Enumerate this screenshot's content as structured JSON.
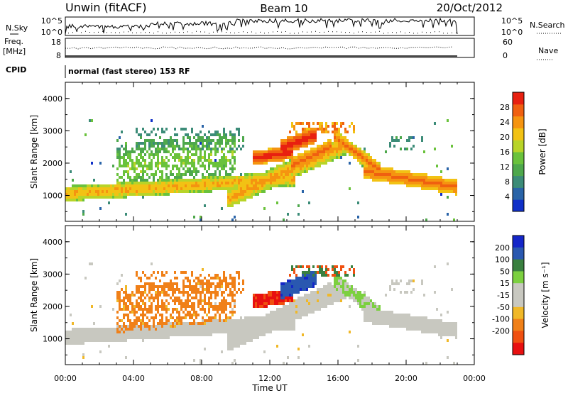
{
  "header": {
    "station": "Unwin (fitACF)",
    "beam": "Beam 10",
    "date": "20/Oct/2012"
  },
  "params": {
    "nsky_label": "N.Sky",
    "nsky_ticks": [
      "10^5",
      "10^0"
    ],
    "nsearch_label": "N.Search",
    "nsearch_ticks": [
      "10^5",
      "10^0"
    ],
    "freq_label_1": "Freq.",
    "freq_label_2": "[MHz]",
    "freq_ticks": [
      "18",
      "8"
    ],
    "nave_label": "Nave",
    "nave_ticks": [
      "60",
      "0"
    ],
    "cpid_label": "CPID",
    "cpid_text": "normal (fast stereo) 153 RF"
  },
  "colors": {
    "power": [
      "#1030c8",
      "#2a64a8",
      "#3c8c78",
      "#4ea84c",
      "#6ac23c",
      "#b8d428",
      "#f2c214",
      "#f59410",
      "#f06010",
      "#e82010"
    ],
    "velocity": [
      "#1426c8",
      "#2a58b0",
      "#3a8040",
      "#7cd040",
      "#c8c8c0",
      "#c8c8c0",
      "#f0b828",
      "#f08018",
      "#f05010",
      "#e81010"
    ]
  },
  "chart_data": [
    {
      "type": "heatmap",
      "quantity": "Power",
      "xlabel": "",
      "ylabel": "Slant Range [km]",
      "xlim": [
        "00:00",
        "24:00"
      ],
      "ylim": [
        200,
        4500
      ],
      "y_ticks": [
        "1000",
        "2000",
        "3000",
        "4000"
      ],
      "colorbar_label": "Power [dB]",
      "colorbar_ticks": [
        "4",
        "8",
        "12",
        "16",
        "20",
        "24",
        "28"
      ],
      "colorbar_range": [
        0,
        32
      ],
      "features": [
        {
          "start": "00:00",
          "end": "12:00",
          "range_start": 1000,
          "range_end": 1500,
          "value": 22
        },
        {
          "start": "11:00",
          "end": "14:00",
          "range_start": 2050,
          "range_end": 2600,
          "value": 30
        },
        {
          "start": "17:30",
          "end": "23:00",
          "range_start": 1800,
          "range_end": 1200,
          "value": 24
        }
      ]
    },
    {
      "type": "heatmap",
      "quantity": "Velocity",
      "xlabel": "Time UT",
      "ylabel": "Slant Range [km]",
      "xlim": [
        "00:00",
        "24:00"
      ],
      "ylim": [
        200,
        4500
      ],
      "x_ticks": [
        "00:00",
        "04:00",
        "08:00",
        "12:00",
        "16:00",
        "20:00",
        "00:00"
      ],
      "y_ticks": [
        "1000",
        "2000",
        "3000",
        "4000"
      ],
      "colorbar_label": "Velocity [m s⁻¹]",
      "colorbar_ticks": [
        "200",
        "100",
        "50",
        "15",
        "-15",
        "-50",
        "-100",
        "-200"
      ],
      "features": [
        {
          "start": "00:00",
          "end": "23:00",
          "range_start": 700,
          "range_end": 1300,
          "value": 0
        },
        {
          "start": "11:00",
          "end": "13:00",
          "range_start": 1900,
          "range_end": 2300,
          "value": -150
        },
        {
          "start": "13:00",
          "end": "15:30",
          "range_start": 2400,
          "range_end": 3000,
          "value": 200
        }
      ]
    }
  ]
}
